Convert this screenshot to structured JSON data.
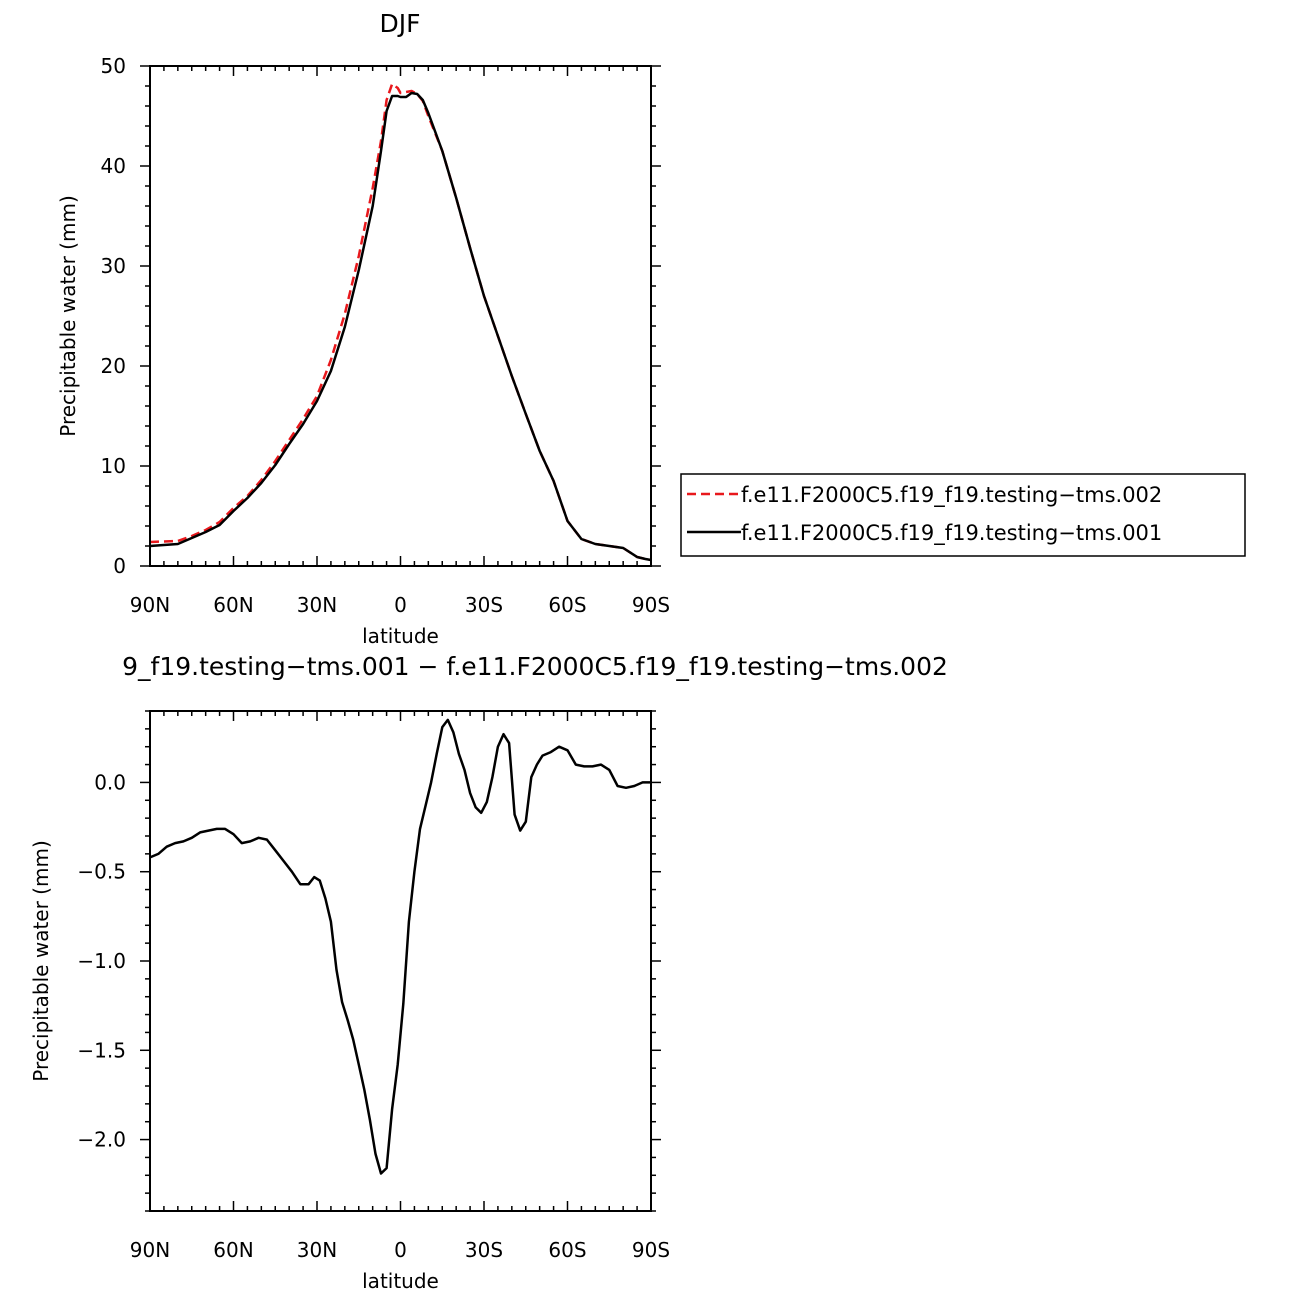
{
  "chart_data": [
    {
      "type": "line",
      "title": "DJF",
      "xlabel": "latitude",
      "ylabel": "Precipitable water (mm)",
      "xlim": [
        -90,
        90
      ],
      "ylim": [
        0,
        50
      ],
      "xticks": [
        {
          "value": -90,
          "label": "90N"
        },
        {
          "value": -60,
          "label": "60N"
        },
        {
          "value": -30,
          "label": "30N"
        },
        {
          "value": 0,
          "label": "0"
        },
        {
          "value": 30,
          "label": "30S"
        },
        {
          "value": 60,
          "label": "60S"
        },
        {
          "value": 90,
          "label": "90S"
        }
      ],
      "yticks": [
        {
          "value": 0,
          "label": "0"
        },
        {
          "value": 10,
          "label": "10"
        },
        {
          "value": 20,
          "label": "20"
        },
        {
          "value": 30,
          "label": "30"
        },
        {
          "value": 40,
          "label": "40"
        },
        {
          "value": 50,
          "label": "50"
        }
      ],
      "legend": "right",
      "series": [
        {
          "name": "f.e11.F2000C5.f19_f19.testing−tms.002",
          "color": "#e8181c",
          "dash": "dashed",
          "x": [
            -90,
            -80,
            -75,
            -70,
            -65,
            -60,
            -55,
            -50,
            -45,
            -40,
            -35,
            -30,
            -25,
            -20,
            -15,
            -10,
            -7,
            -5,
            -3,
            -1,
            0,
            2,
            4,
            6,
            8,
            10,
            15,
            20,
            25,
            30,
            35,
            40,
            45,
            50,
            55,
            60,
            65,
            70,
            75,
            80,
            85,
            88,
            90
          ],
          "y": [
            2.4,
            2.5,
            3.0,
            3.6,
            4.4,
            5.8,
            7.0,
            8.6,
            10.5,
            12.6,
            14.7,
            17.0,
            20.6,
            25.2,
            31.0,
            37.8,
            42.5,
            46.6,
            48.2,
            47.8,
            47.3,
            47.4,
            47.5,
            47.2,
            46.5,
            45.0,
            41.5,
            36.8,
            31.8,
            27.0,
            23.0,
            19.0,
            15.2,
            11.5,
            8.5,
            4.5,
            2.7,
            2.2,
            2.0,
            1.8,
            0.9,
            0.7,
            0.6
          ]
        },
        {
          "name": "f.e11.F2000C5.f19_f19.testing−tms.001",
          "color": "#000000",
          "dash": "solid",
          "x": [
            -90,
            -80,
            -75,
            -70,
            -65,
            -60,
            -55,
            -50,
            -45,
            -40,
            -35,
            -30,
            -25,
            -20,
            -15,
            -10,
            -7,
            -5,
            -3,
            -1,
            0,
            2,
            4,
            6,
            8,
            10,
            15,
            20,
            25,
            30,
            35,
            40,
            45,
            50,
            55,
            60,
            65,
            70,
            75,
            80,
            85,
            88,
            90
          ],
          "y": [
            2.0,
            2.2,
            2.8,
            3.4,
            4.1,
            5.5,
            6.8,
            8.3,
            10.1,
            12.2,
            14.2,
            16.5,
            19.5,
            23.9,
            29.6,
            36.0,
            41.5,
            45.5,
            47.0,
            47.0,
            46.9,
            46.9,
            47.3,
            47.2,
            46.6,
            45.3,
            41.5,
            36.8,
            31.8,
            27.0,
            23.0,
            19.0,
            15.2,
            11.5,
            8.5,
            4.5,
            2.7,
            2.2,
            2.0,
            1.8,
            0.9,
            0.7,
            0.6
          ]
        }
      ]
    },
    {
      "type": "line",
      "title": "9_f19.testing−tms.001 − f.e11.F2000C5.f19_f19.testing−tms.002",
      "xlabel": "latitude",
      "ylabel": "Precipitable water (mm)",
      "xlim": [
        -90,
        90
      ],
      "ylim": [
        -2.4,
        0.4
      ],
      "xticks": [
        {
          "value": -90,
          "label": "90N"
        },
        {
          "value": -60,
          "label": "60N"
        },
        {
          "value": -30,
          "label": "30N"
        },
        {
          "value": 0,
          "label": "0"
        },
        {
          "value": 30,
          "label": "30S"
        },
        {
          "value": 60,
          "label": "60S"
        },
        {
          "value": 90,
          "label": "90S"
        }
      ],
      "yticks": [
        {
          "value": 0.0,
          "label": "0.0"
        },
        {
          "value": -0.5,
          "label": "−0.5"
        },
        {
          "value": -1.0,
          "label": "−1.0"
        },
        {
          "value": -1.5,
          "label": "−1.5"
        },
        {
          "value": -2.0,
          "label": "−2.0"
        }
      ],
      "series": [
        {
          "color": "#000000",
          "x": [
            -90,
            -87,
            -84,
            -81,
            -78,
            -75,
            -72,
            -69,
            -66,
            -63,
            -60,
            -57,
            -54,
            -51,
            -48,
            -45,
            -42,
            -39,
            -36,
            -33,
            -31,
            -29,
            -27,
            -25,
            -23,
            -21,
            -19,
            -17,
            -15,
            -13,
            -11,
            -9,
            -7,
            -5,
            -3,
            -1,
            1,
            3,
            5,
            7,
            9,
            11,
            13,
            15,
            17,
            19,
            21,
            23,
            25,
            27,
            29,
            31,
            33,
            35,
            37,
            39,
            41,
            43,
            45,
            47,
            49,
            51,
            54,
            57,
            60,
            63,
            66,
            69,
            72,
            75,
            78,
            81,
            84,
            87,
            90
          ],
          "y": [
            -0.42,
            -0.4,
            -0.36,
            -0.34,
            -0.33,
            -0.31,
            -0.28,
            -0.27,
            -0.26,
            -0.26,
            -0.29,
            -0.34,
            -0.33,
            -0.31,
            -0.32,
            -0.38,
            -0.44,
            -0.5,
            -0.57,
            -0.57,
            -0.53,
            -0.55,
            -0.65,
            -0.78,
            -1.05,
            -1.23,
            -1.33,
            -1.44,
            -1.58,
            -1.72,
            -1.89,
            -2.08,
            -2.19,
            -2.16,
            -1.83,
            -1.58,
            -1.24,
            -0.78,
            -0.5,
            -0.26,
            -0.13,
            0.0,
            0.16,
            0.31,
            0.35,
            0.28,
            0.16,
            0.07,
            -0.06,
            -0.14,
            -0.17,
            -0.11,
            0.03,
            0.2,
            0.27,
            0.22,
            -0.18,
            -0.27,
            -0.22,
            0.03,
            0.1,
            0.15,
            0.17,
            0.2,
            0.18,
            0.1,
            0.09,
            0.09,
            0.1,
            0.07,
            -0.02,
            -0.03,
            -0.02,
            0.0,
            0.0
          ]
        }
      ]
    }
  ]
}
